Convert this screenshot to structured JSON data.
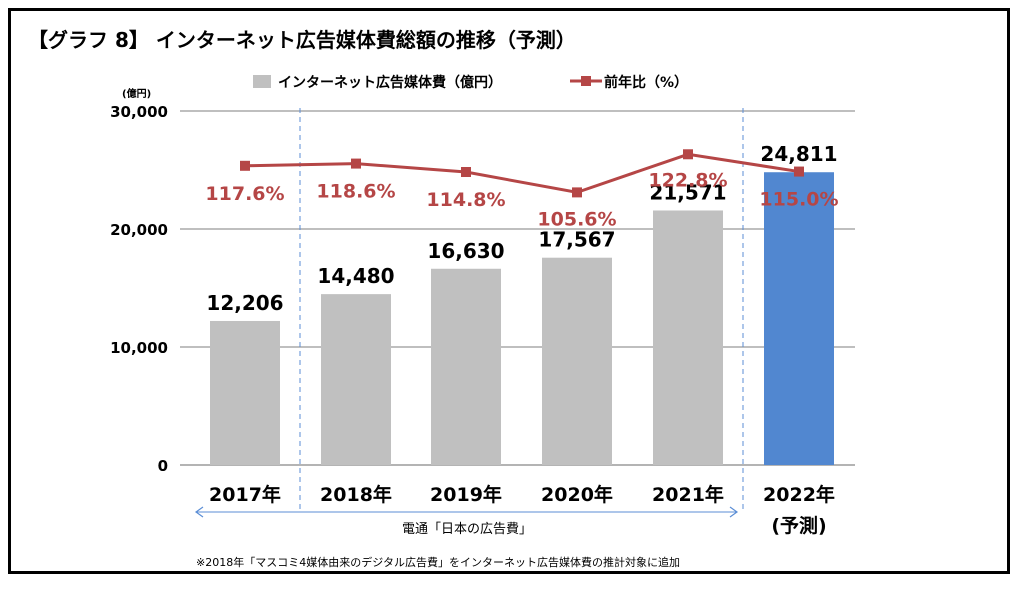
{
  "chart_data": {
    "type": "bar",
    "title": "【グラフ 8】 インターネット広告媒体費総額の推移（予測）",
    "unit_label": "(億円)",
    "categories": [
      "2017年",
      "2018年",
      "2019年",
      "2020年",
      "2021年",
      "2022年"
    ],
    "forecast_sublabel": "(予測)",
    "series": [
      {
        "name": "インターネット広告媒体費（億円）",
        "type": "bar",
        "values": [
          12206,
          14480,
          16630,
          17567,
          21571,
          24811
        ],
        "value_labels": [
          "12,206",
          "14,480",
          "16,630",
          "17,567",
          "21,571",
          "24,811"
        ],
        "color": "#c0c0c0",
        "forecast_color": "#5187d0"
      },
      {
        "name": "前年比（%）",
        "type": "line",
        "values": [
          117.6,
          118.6,
          114.8,
          105.6,
          122.8,
          115.0
        ],
        "value_labels": [
          "117.6%",
          "118.6%",
          "114.8%",
          "105.6%",
          "122.8%",
          "115.0%"
        ],
        "color": "#b54646"
      }
    ],
    "ylim": [
      0,
      30000
    ],
    "yticks": [
      0,
      10000,
      20000,
      30000
    ],
    "ytick_labels": [
      "0",
      "10,000",
      "20,000",
      "30,000"
    ],
    "grid": true,
    "legend_position": "top",
    "source_label": "電通「日本の広告費」",
    "footnote": "※2018年「マスコミ4媒体由来のデジタル広告費」をインターネット広告媒体費の推計対象に追加"
  }
}
